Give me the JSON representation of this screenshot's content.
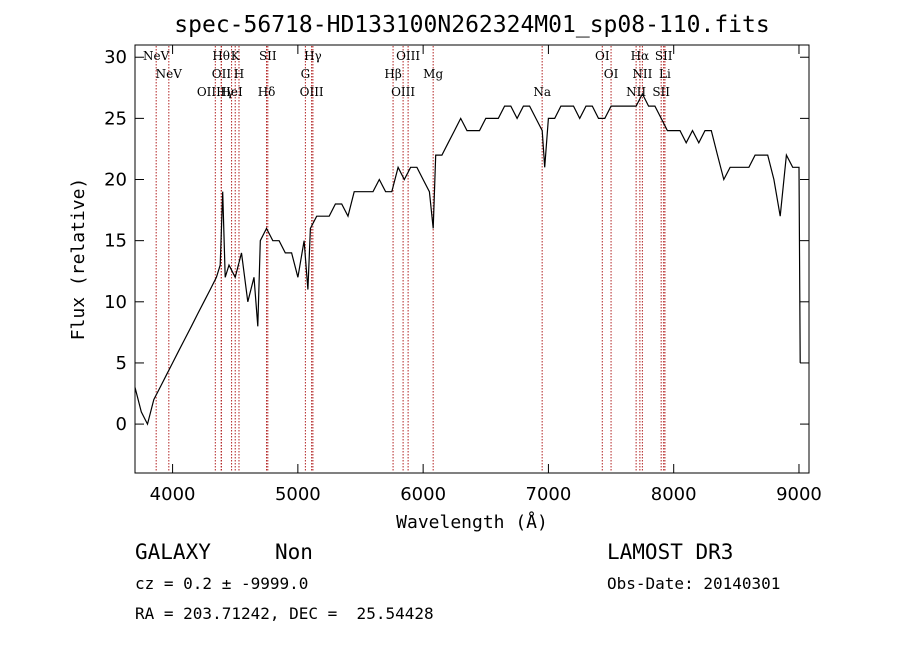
{
  "chart_data": {
    "type": "line",
    "title": "spec-56718-HD133100N262324M01_sp08-110.fits",
    "xlabel": "Wavelength (Å)",
    "ylabel": "Flux (relative)",
    "xlim": [
      3700,
      9080
    ],
    "ylim": [
      -4,
      31
    ],
    "xticks": [
      4000,
      5000,
      6000,
      7000,
      8000,
      9000
    ],
    "yticks": [
      0,
      5,
      10,
      15,
      20,
      25,
      30
    ],
    "grid": false,
    "series": [
      {
        "x": [
          3700,
          3750,
          3800,
          3850,
          3900,
          3950,
          4000,
          4050,
          4100,
          4150,
          4200,
          4250,
          4300,
          4350,
          4380,
          4400,
          4420,
          4450,
          4500,
          4550,
          4600,
          4650,
          4680,
          4700,
          4750,
          4800,
          4850,
          4900,
          4950,
          5000,
          5050,
          5080,
          5100,
          5150,
          5200,
          5250,
          5300,
          5350,
          5400,
          5450,
          5500,
          5550,
          5600,
          5650,
          5700,
          5750,
          5800,
          5850,
          5900,
          5950,
          6000,
          6050,
          6080,
          6100,
          6150,
          6200,
          6250,
          6300,
          6350,
          6400,
          6450,
          6500,
          6550,
          6600,
          6650,
          6700,
          6750,
          6800,
          6850,
          6900,
          6950,
          6970,
          7000,
          7050,
          7100,
          7150,
          7200,
          7250,
          7300,
          7350,
          7400,
          7450,
          7500,
          7550,
          7600,
          7650,
          7700,
          7750,
          7800,
          7850,
          7900,
          7950,
          8000,
          8050,
          8100,
          8150,
          8200,
          8250,
          8300,
          8350,
          8400,
          8450,
          8500,
          8550,
          8600,
          8650,
          8700,
          8750,
          8800,
          8850,
          8900,
          8950,
          9000,
          9010
        ],
        "y": [
          3,
          1,
          0,
          2,
          3,
          4,
          5,
          6,
          7,
          8,
          9,
          10,
          11,
          12,
          13,
          19,
          12,
          13,
          12,
          14,
          10,
          12,
          8,
          15,
          16,
          15,
          15,
          14,
          14,
          12,
          15,
          11,
          16,
          17,
          17,
          17,
          18,
          18,
          17,
          19,
          19,
          19,
          19,
          20,
          19,
          19,
          21,
          20,
          21,
          21,
          20,
          19,
          16,
          22,
          22,
          23,
          24,
          25,
          24,
          24,
          24,
          25,
          25,
          25,
          26,
          26,
          25,
          26,
          26,
          25,
          24,
          21,
          25,
          25,
          26,
          26,
          26,
          25,
          26,
          26,
          25,
          25,
          26,
          26,
          26,
          26,
          26,
          27,
          26,
          26,
          25,
          24,
          24,
          24,
          23,
          24,
          23,
          24,
          24,
          22,
          20,
          21,
          21,
          21,
          21,
          22,
          22,
          22,
          20,
          17,
          22,
          21,
          21,
          5
        ]
      }
    ],
    "line_markers": [
      {
        "wl": 3869,
        "label": "NeV"
      },
      {
        "wl": 3970,
        "label": "NeV"
      },
      {
        "wl": 4341,
        "label": "OIIHγ"
      },
      {
        "wl": 4388,
        "label": "Hθ"
      },
      {
        "wl": 4390,
        "label": "OII"
      },
      {
        "wl": 4471,
        "label": "HeI"
      },
      {
        "wl": 4500,
        "label": "K"
      },
      {
        "wl": 4530,
        "label": "H"
      },
      {
        "wl": 4750,
        "label": "Hδ"
      },
      {
        "wl": 4760,
        "label": "SII"
      },
      {
        "wl": 5060,
        "label": "G"
      },
      {
        "wl": 5110,
        "label": "OIII"
      },
      {
        "wl": 5120,
        "label": "Hγ"
      },
      {
        "wl": 5760,
        "label": "Hβ"
      },
      {
        "wl": 5840,
        "label": "OIII"
      },
      {
        "wl": 5880,
        "label": "OIII"
      },
      {
        "wl": 6080,
        "label": "Mg"
      },
      {
        "wl": 6950,
        "label": "Na"
      },
      {
        "wl": 7430,
        "label": "OI"
      },
      {
        "wl": 7500,
        "label": "OI"
      },
      {
        "wl": 7700,
        "label": "NII"
      },
      {
        "wl": 7730,
        "label": "Hα"
      },
      {
        "wl": 7750,
        "label": "NII"
      },
      {
        "wl": 7900,
        "label": "SII"
      },
      {
        "wl": 7920,
        "label": "SII"
      },
      {
        "wl": 7930,
        "label": "Li"
      }
    ]
  },
  "info": {
    "object_class": "GALAXY",
    "subclass": "Non",
    "survey": "LAMOST DR3",
    "cz": "cz = 0.2 ± -9999.0",
    "obs_date": "Obs-Date: 20140301",
    "coords": "RA = 203.71242, DEC =  25.54428"
  }
}
